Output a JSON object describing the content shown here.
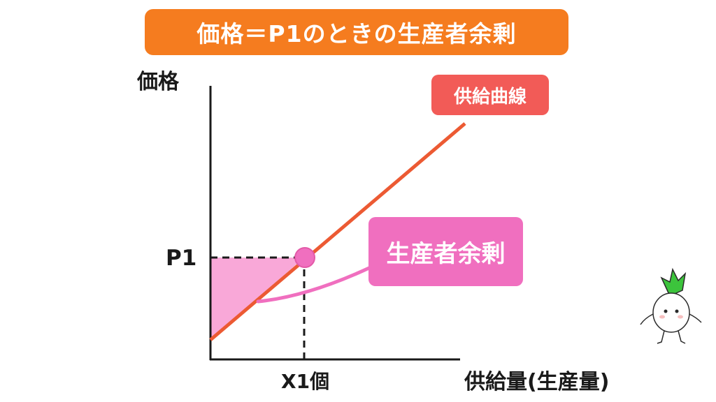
{
  "title": "価格＝P1のときの生産者余剰",
  "y_axis_label": "価格",
  "x_axis_label": "供給量(生産量)",
  "price_label": "P1",
  "quantity_label": "X1個",
  "supply_curve_label": "供給曲線",
  "producer_surplus_label": "生産者余剰",
  "mascot_icon": "turnip-mascot-icon",
  "colors": {
    "title_bg": "#f57c1f",
    "supply_line": "#ec5a33",
    "supply_tag": "#f25b57",
    "surplus_fill": "#f9a8d8",
    "surplus_tag": "#f06fbf",
    "equilibrium_point": "#f06fbf",
    "mascot_leaf": "#3cc43c"
  }
}
